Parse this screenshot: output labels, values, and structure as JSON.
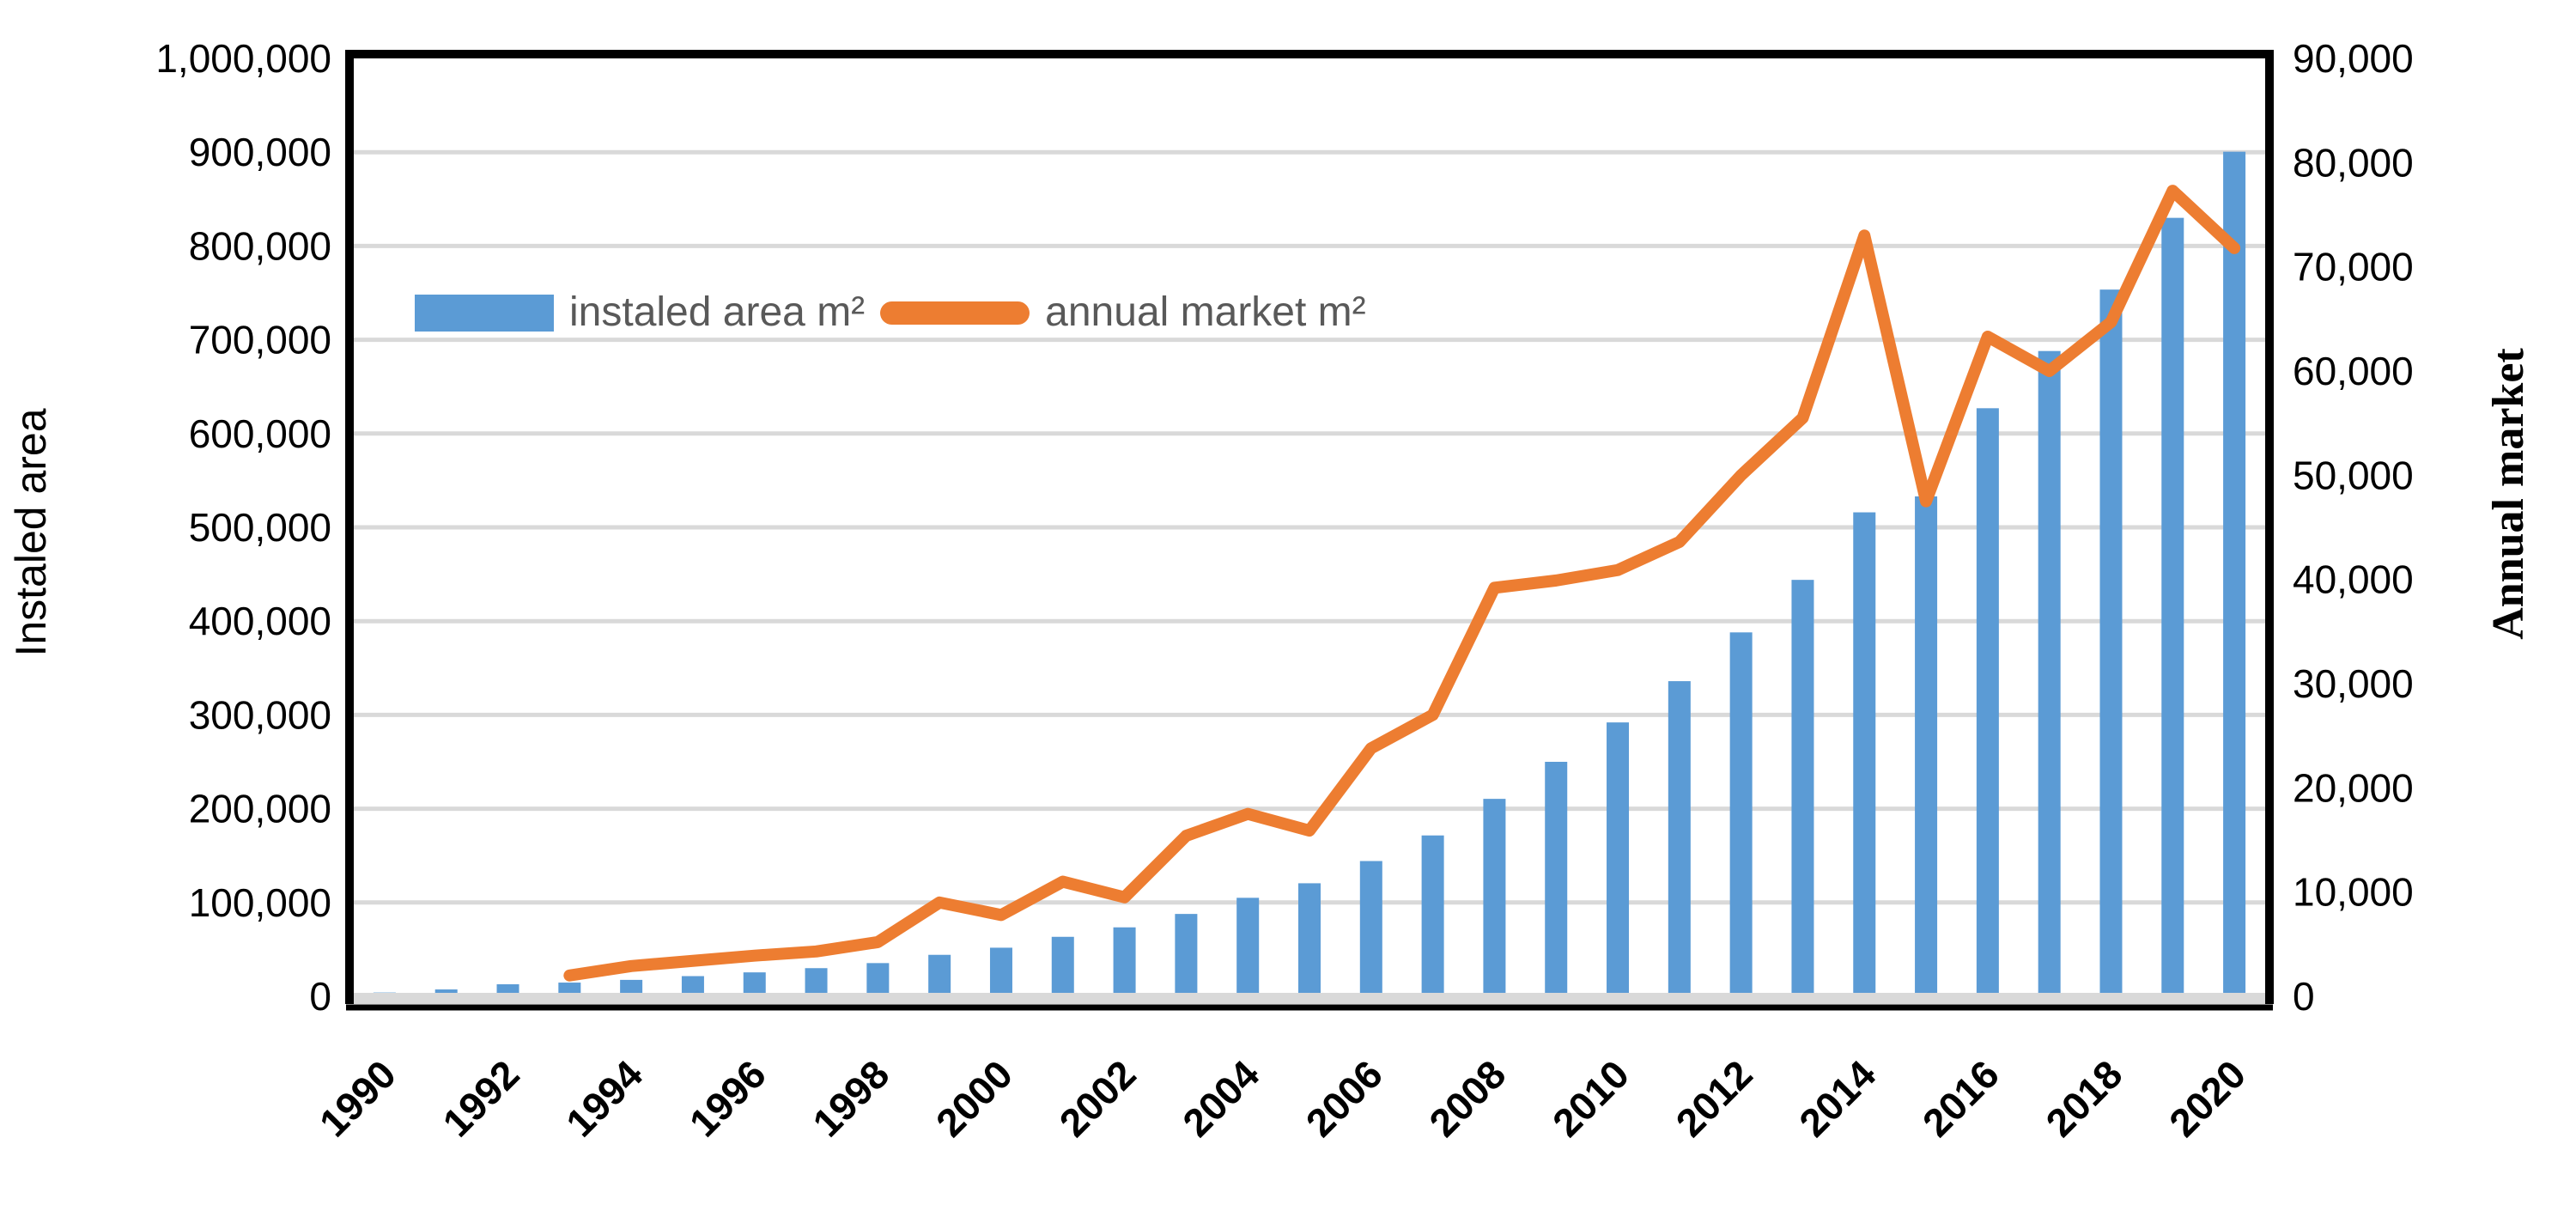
{
  "chart_data": {
    "type": "combo_bar_line",
    "title": "",
    "categories": [
      1990,
      1991,
      1992,
      1993,
      1994,
      1995,
      1996,
      1997,
      1998,
      1999,
      2000,
      2001,
      2002,
      2003,
      2004,
      2005,
      2006,
      2007,
      2008,
      2009,
      2010,
      2011,
      2012,
      2013,
      2014,
      2015,
      2016,
      2017,
      2018,
      2019,
      2020
    ],
    "x_axis": {
      "tick_labels": [
        "1990",
        "1992",
        "1994",
        "1996",
        "1998",
        "2000",
        "2002",
        "2004",
        "2006",
        "2008",
        "2010",
        "2012",
        "2014",
        "2016",
        "2018",
        "2020"
      ],
      "rotation_deg": -45
    },
    "y_left": {
      "title": "Instaled area",
      "min": 0,
      "max": 1000000,
      "step": 100000,
      "tick_labels": [
        "0",
        "100,000",
        "200,000",
        "300,000",
        "400,000",
        "500,000",
        "600,000",
        "700,000",
        "800,000",
        "900,000",
        "1,000,000"
      ]
    },
    "y_right": {
      "title": "Annual market",
      "min": 0,
      "max": 90000,
      "step": 10000,
      "tick_labels": [
        "0",
        "10,000",
        "20,000",
        "30,000",
        "40,000",
        "50,000",
        "60,000",
        "70,000",
        "80,000",
        "90,000"
      ]
    },
    "series": [
      {
        "name": "instaled area m²",
        "type": "bar",
        "axis": "left",
        "color": "#5B9BD5",
        "values": [
          4000,
          7300,
          12800,
          14600,
          17500,
          21500,
          25500,
          30000,
          35400,
          44200,
          51800,
          63400,
          73500,
          87800,
          105000,
          120500,
          144200,
          171500,
          210500,
          250000,
          292000,
          336000,
          388000,
          444000,
          516000,
          533000,
          627000,
          688000,
          753500,
          830000,
          900500
        ]
      },
      {
        "name": "annual market m²",
        "type": "line",
        "axis": "right",
        "color": "#ED7D31",
        "values": [
          null,
          null,
          null,
          2000,
          2900,
          3400,
          3900,
          4300,
          5200,
          9000,
          7800,
          11000,
          9500,
          15400,
          17500,
          15900,
          23800,
          27000,
          39200,
          39900,
          40900,
          43600,
          50000,
          55500,
          73000,
          47500,
          63300,
          60000,
          64700,
          77300,
          71800
        ]
      }
    ],
    "legend": {
      "position": "inside-top-left",
      "items": [
        {
          "label": "instaled area m²",
          "marker": "bar-swatch",
          "color": "#5B9BD5"
        },
        {
          "label": "annual market m²",
          "marker": "line-swatch",
          "color": "#ED7D31"
        }
      ]
    },
    "grid": {
      "axis": "left",
      "step": 100000,
      "color": "#D9D9D9",
      "horizontal": true,
      "vertical": false
    }
  },
  "colors": {
    "bar": "#5B9BD5",
    "line": "#ED7D31",
    "grid": "#D9D9D9",
    "plot_border": "#000000",
    "axis_band": "#D9D9D9",
    "tick_text": "#000000",
    "legend_text": "#595959"
  }
}
